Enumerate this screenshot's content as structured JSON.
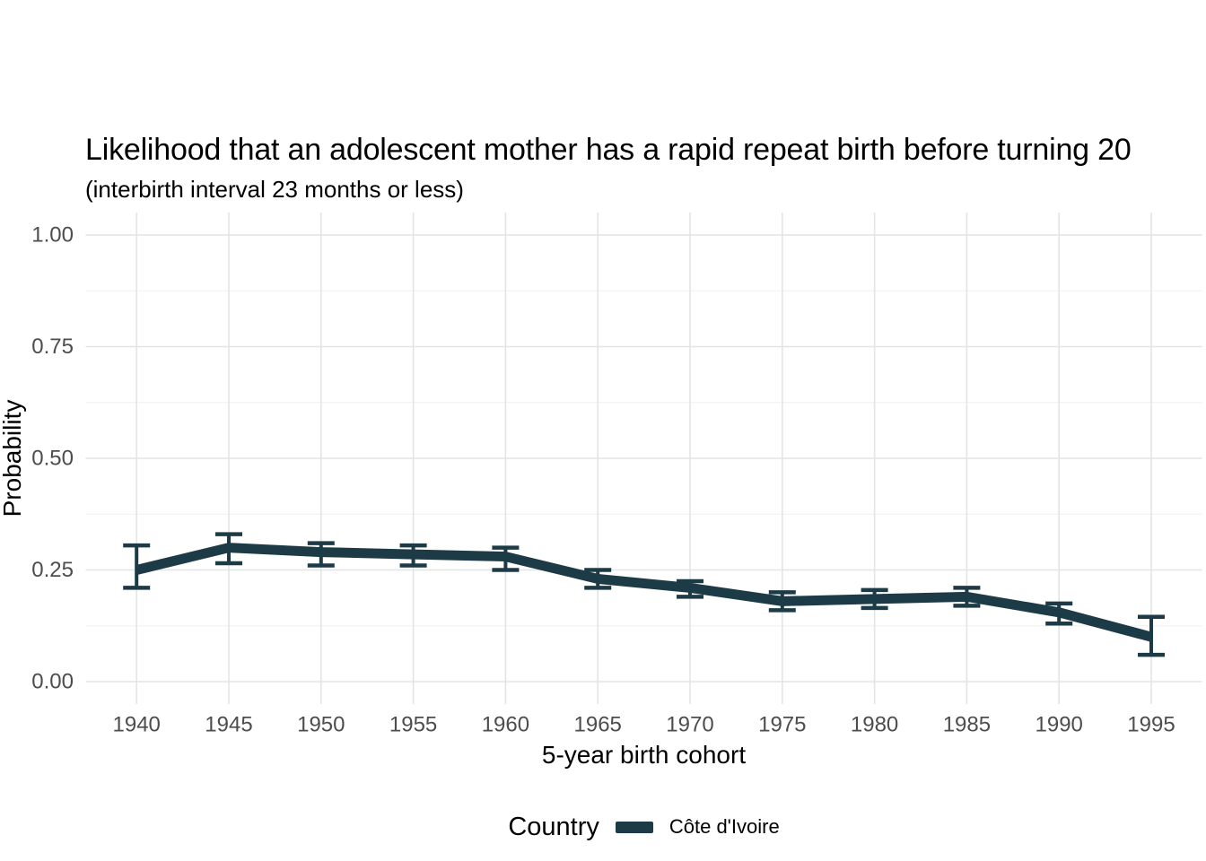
{
  "chart_data": {
    "type": "line",
    "title": "Likelihood that an adolescent mother has a rapid repeat birth before turning 20",
    "subtitle": "(interbirth interval 23 months or less)",
    "xlabel": "5-year birth cohort",
    "ylabel": "Probability",
    "legend_title": "Country",
    "legend_position": "bottom",
    "grid": true,
    "xlim": [
      1937.25,
      1997.75
    ],
    "ylim": [
      0,
      1
    ],
    "x_tick_labels": [
      "1940",
      "1945",
      "1950",
      "1955",
      "1960",
      "1965",
      "1970",
      "1975",
      "1980",
      "1985",
      "1990",
      "1995"
    ],
    "x_tick_values": [
      1940,
      1945,
      1950,
      1955,
      1960,
      1965,
      1970,
      1975,
      1980,
      1985,
      1990,
      1995
    ],
    "y_tick_labels": [
      "0.00",
      "0.25",
      "0.50",
      "0.75",
      "1.00"
    ],
    "y_tick_values": [
      0,
      0.25,
      0.5,
      0.75,
      1.0
    ],
    "y_minor_tick_values": [
      0.125,
      0.375,
      0.625,
      0.875
    ],
    "series": [
      {
        "name": "Côte d'Ivoire",
        "color": "#1d3b47",
        "x": [
          1940,
          1945,
          1950,
          1955,
          1960,
          1965,
          1970,
          1975,
          1980,
          1985,
          1990,
          1995
        ],
        "y": [
          0.25,
          0.3,
          0.29,
          0.285,
          0.28,
          0.23,
          0.21,
          0.18,
          0.185,
          0.19,
          0.155,
          0.1
        ],
        "ci_lower": [
          0.21,
          0.265,
          0.26,
          0.26,
          0.25,
          0.21,
          0.19,
          0.16,
          0.165,
          0.17,
          0.13,
          0.06
        ],
        "ci_upper": [
          0.305,
          0.33,
          0.31,
          0.305,
          0.3,
          0.25,
          0.225,
          0.2,
          0.205,
          0.21,
          0.175,
          0.145
        ],
        "error_bars": true
      }
    ]
  },
  "style": {
    "line_color": "#1d3b47",
    "grid_major_color": "#e4e4e4",
    "grid_minor_color": "#f0f0f0",
    "tick_label_color": "#4d4d4d",
    "background": "#ffffff"
  }
}
